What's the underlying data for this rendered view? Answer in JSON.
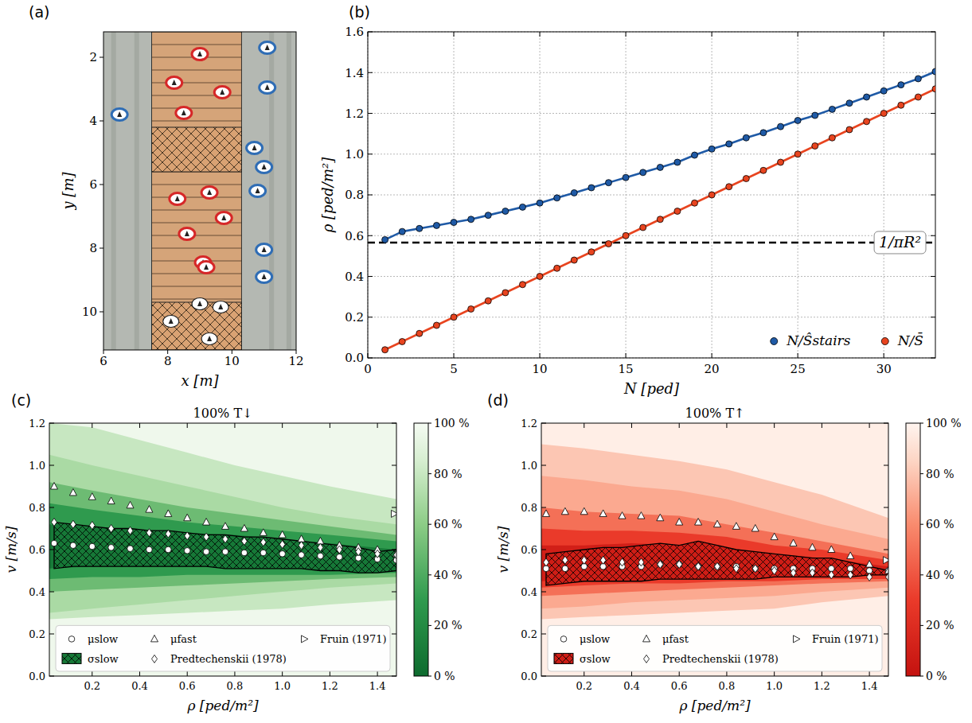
{
  "chart_data": [
    {
      "type": "scatter",
      "panel_label": "(a)",
      "x_label": "x [m]",
      "y_label": "y [m]",
      "xlim": [
        6,
        12
      ],
      "ylim": [
        11.2,
        1.2
      ],
      "xticks": [
        6,
        8,
        10,
        12
      ],
      "yticks": [
        2,
        4,
        6,
        8,
        10
      ],
      "stairs": {
        "x": [
          7.5,
          10.3
        ],
        "y": [
          1.2,
          11.2
        ]
      },
      "hatched_y": [
        [
          4.2,
          5.6
        ],
        [
          9.7,
          11.2
        ]
      ],
      "marker": "ellipse",
      "series": [
        {
          "color": "#d62728",
          "x": [
            9.0,
            8.2,
            9.7,
            8.5,
            9.3,
            8.3,
            9.75,
            8.6,
            9.1,
            9.2
          ],
          "values": [
            1.9,
            2.8,
            3.1,
            3.75,
            6.25,
            6.45,
            7.05,
            7.55,
            8.45,
            8.6
          ]
        },
        {
          "color": "#2f6db5",
          "x": [
            11.1,
            11.1,
            6.5,
            10.7,
            11.0,
            10.8,
            11.0,
            11.0
          ],
          "values": [
            1.7,
            2.95,
            3.8,
            4.85,
            5.45,
            6.2,
            8.05,
            8.9
          ]
        },
        {
          "color": "#ffffff",
          "x": [
            9.0,
            9.65,
            8.1,
            9.3
          ],
          "values": [
            9.75,
            9.85,
            10.3,
            10.85
          ]
        }
      ]
    },
    {
      "type": "line",
      "panel_label": "(b)",
      "x_label": "N [ped]",
      "y_label": "ρ [ped/m²]",
      "xlim": [
        0,
        33
      ],
      "ylim": [
        0,
        1.6
      ],
      "xticks": [
        0,
        5,
        10,
        15,
        20,
        25,
        30
      ],
      "yticks": [
        {
          "value": 0,
          "label": "0.0"
        },
        0.2,
        0.4,
        0.6,
        0.8,
        {
          "value": 1,
          "label": "1.0"
        },
        1.2,
        1.4,
        1.6
      ],
      "grid": true,
      "legend": "lower right",
      "marker": "circle",
      "x": [
        1,
        2,
        3,
        4,
        5,
        6,
        7,
        8,
        9,
        10,
        11,
        12,
        13,
        14,
        15,
        16,
        17,
        18,
        19,
        20,
        21,
        22,
        23,
        24,
        25,
        26,
        27,
        28,
        29,
        30,
        31,
        32,
        33
      ],
      "series": [
        {
          "name": "N/Ŝstairs",
          "color": "#1f5aa6",
          "values": [
            0.58,
            0.62,
            0.635,
            0.65,
            0.665,
            0.68,
            0.7,
            0.72,
            0.74,
            0.76,
            0.785,
            0.81,
            0.835,
            0.86,
            0.885,
            0.91,
            0.935,
            0.96,
            0.995,
            1.025,
            1.05,
            1.08,
            1.105,
            1.135,
            1.165,
            1.19,
            1.22,
            1.25,
            1.28,
            1.31,
            1.34,
            1.37,
            1.405
          ]
        },
        {
          "name": "N/S̄",
          "color": "#e8441f",
          "values": [
            0.04,
            0.08,
            0.12,
            0.16,
            0.2,
            0.24,
            0.28,
            0.32,
            0.36,
            0.4,
            0.44,
            0.48,
            0.52,
            0.56,
            0.6,
            0.64,
            0.68,
            0.72,
            0.76,
            0.8,
            0.84,
            0.88,
            0.92,
            0.96,
            1.0,
            1.04,
            1.08,
            1.12,
            1.16,
            1.2,
            1.24,
            1.28,
            1.32
          ]
        }
      ],
      "reference_line": {
        "value": 0.566,
        "label": "1/πR²",
        "line_style": "dashed"
      }
    },
    {
      "type": "contour",
      "panel_label": "(c)",
      "title": "100% T↓",
      "x_label": "ρ [ped/m²]",
      "y_label": "v [m/s]",
      "xlim": [
        0.02,
        1.48
      ],
      "ylim": [
        0,
        1.2
      ],
      "xticks": [
        0.2,
        0.4,
        0.6,
        0.8,
        {
          "value": 1,
          "label": "1.0"
        },
        1.2,
        1.4
      ],
      "yticks": [
        {
          "value": 0,
          "label": "0.0"
        },
        0.2,
        0.4,
        0.6,
        0.8,
        {
          "value": 1,
          "label": "1.0"
        },
        1.2
      ],
      "color": "green",
      "legend": "lower center",
      "contour_x": [
        0.02,
        0.2,
        0.4,
        0.6,
        0.8,
        1.0,
        1.2,
        1.48
      ],
      "contours": [
        {
          "level": 90,
          "lower": [
            0.27,
            0.28,
            0.29,
            0.3,
            0.31,
            0.32,
            0.34,
            0.36
          ],
          "upper": [
            1.2,
            1.18,
            1.12,
            1.06,
            1.0,
            0.95,
            0.9,
            0.84
          ]
        },
        {
          "level": 80,
          "lower": [
            0.3,
            0.32,
            0.34,
            0.36,
            0.38,
            0.4,
            0.42,
            0.44
          ],
          "upper": [
            1.05,
            1.0,
            0.95,
            0.9,
            0.85,
            0.8,
            0.76,
            0.72
          ]
        },
        {
          "level": 60,
          "lower": [
            0.4,
            0.41,
            0.42,
            0.43,
            0.44,
            0.45,
            0.46,
            0.47
          ],
          "upper": [
            0.92,
            0.88,
            0.84,
            0.8,
            0.77,
            0.74,
            0.71,
            0.67
          ]
        },
        {
          "level": 40,
          "lower": [
            0.46,
            0.47,
            0.47,
            0.48,
            0.48,
            0.48,
            0.48,
            0.49
          ],
          "upper": [
            0.82,
            0.79,
            0.76,
            0.73,
            0.71,
            0.69,
            0.67,
            0.64
          ]
        },
        {
          "level": 20,
          "lower": [
            0.51,
            0.52,
            0.52,
            0.52,
            0.52,
            0.51,
            0.51,
            0.5
          ],
          "upper": [
            0.72,
            0.7,
            0.69,
            0.68,
            0.67,
            0.65,
            0.63,
            0.6
          ]
        }
      ],
      "colorbar": {
        "range": [
          0,
          100
        ],
        "ticks": [
          {
            "value": 0,
            "label": "0 %"
          },
          {
            "value": 20,
            "label": "20 %"
          },
          {
            "value": 40,
            "label": "40 %"
          },
          {
            "value": 60,
            "label": "60 %"
          },
          {
            "value": 80,
            "label": "80 %"
          },
          {
            "value": 100,
            "label": "100 %"
          }
        ]
      },
      "x": [
        0.04,
        0.12,
        0.2,
        0.28,
        0.36,
        0.44,
        0.52,
        0.6,
        0.68,
        0.76,
        0.84,
        0.92,
        1.0,
        1.08,
        1.16,
        1.24,
        1.32,
        1.4,
        1.48
      ],
      "series": [
        {
          "name": "μslow",
          "marker": "circle",
          "values": [
            0.63,
            0.62,
            0.615,
            0.61,
            0.605,
            0.6,
            0.6,
            0.595,
            0.59,
            0.59,
            0.585,
            0.585,
            0.58,
            0.575,
            0.57,
            0.565,
            0.56,
            0.555,
            0.55
          ]
        },
        {
          "name": "μfast",
          "marker": "triangle",
          "values": [
            0.9,
            0.87,
            0.85,
            0.83,
            0.81,
            0.79,
            0.77,
            0.75,
            0.73,
            0.71,
            0.7,
            0.68,
            0.67,
            0.65,
            0.64,
            0.62,
            0.61,
            0.6,
            0.58
          ]
        },
        {
          "name": "Fruin (1971)",
          "marker": "triangle-right",
          "x": [
            1.47
          ],
          "values": [
            0.77
          ]
        },
        {
          "name": "σslow",
          "type": "band",
          "upper": [
            0.73,
            0.72,
            0.71,
            0.7,
            0.7,
            0.69,
            0.69,
            0.68,
            0.67,
            0.67,
            0.66,
            0.66,
            0.65,
            0.64,
            0.63,
            0.62,
            0.61,
            0.59,
            0.6
          ],
          "lower": [
            0.51,
            0.52,
            0.52,
            0.52,
            0.52,
            0.52,
            0.52,
            0.52,
            0.52,
            0.51,
            0.51,
            0.51,
            0.51,
            0.51,
            0.5,
            0.5,
            0.49,
            0.49,
            0.5
          ]
        },
        {
          "name": "Predtechenskii (1978)",
          "marker": "diamond",
          "values": [
            0.73,
            0.72,
            0.715,
            0.7,
            0.69,
            0.68,
            0.675,
            0.665,
            0.66,
            0.65,
            0.64,
            0.635,
            0.625,
            0.62,
            0.61,
            0.6,
            0.59,
            0.58,
            0.575
          ]
        }
      ]
    },
    {
      "type": "contour",
      "panel_label": "(d)",
      "title": "100% T↑",
      "x_label": "ρ [ped/m²]",
      "y_label": "v [m/s]",
      "xlim": [
        0.02,
        1.48
      ],
      "ylim": [
        0,
        1.2
      ],
      "xticks": [
        0.2,
        0.4,
        0.6,
        0.8,
        {
          "value": 1,
          "label": "1.0"
        },
        1.2,
        1.4
      ],
      "yticks": [
        {
          "value": 0,
          "label": "0.0"
        },
        0.2,
        0.4,
        0.6,
        0.8,
        {
          "value": 1,
          "label": "1.0"
        },
        1.2
      ],
      "color": "red",
      "legend": "lower center",
      "contour_x": [
        0.02,
        0.2,
        0.4,
        0.6,
        0.8,
        1.0,
        1.2,
        1.48
      ],
      "contours": [
        {
          "level": 90,
          "lower": [
            0.27,
            0.28,
            0.29,
            0.3,
            0.31,
            0.32,
            0.35,
            0.38
          ],
          "upper": [
            1.1,
            1.08,
            1.05,
            1.02,
            0.98,
            0.92,
            0.86,
            0.75
          ]
        },
        {
          "level": 80,
          "lower": [
            0.32,
            0.33,
            0.35,
            0.36,
            0.37,
            0.38,
            0.4,
            0.42
          ],
          "upper": [
            0.95,
            0.93,
            0.9,
            0.88,
            0.84,
            0.78,
            0.72,
            0.65
          ]
        },
        {
          "level": 60,
          "lower": [
            0.38,
            0.39,
            0.4,
            0.41,
            0.42,
            0.43,
            0.44,
            0.45
          ],
          "upper": [
            0.8,
            0.78,
            0.77,
            0.76,
            0.72,
            0.68,
            0.64,
            0.58
          ]
        },
        {
          "level": 40,
          "lower": [
            0.42,
            0.43,
            0.44,
            0.44,
            0.45,
            0.45,
            0.46,
            0.46
          ],
          "upper": [
            0.7,
            0.69,
            0.69,
            0.68,
            0.66,
            0.62,
            0.6,
            0.55
          ]
        },
        {
          "level": 20,
          "lower": [
            0.45,
            0.46,
            0.46,
            0.47,
            0.47,
            0.47,
            0.47,
            0.48
          ],
          "upper": [
            0.62,
            0.62,
            0.63,
            0.62,
            0.6,
            0.58,
            0.56,
            0.52
          ]
        }
      ],
      "colorbar": {
        "range": [
          0,
          100
        ],
        "ticks": [
          {
            "value": 0,
            "label": "0 %"
          },
          {
            "value": 20,
            "label": "20 %"
          },
          {
            "value": 40,
            "label": "40 %"
          },
          {
            "value": 60,
            "label": "60 %"
          },
          {
            "value": 80,
            "label": "80 %"
          },
          {
            "value": 100,
            "label": "100 %"
          }
        ]
      },
      "x": [
        0.04,
        0.12,
        0.2,
        0.28,
        0.36,
        0.44,
        0.52,
        0.6,
        0.68,
        0.76,
        0.84,
        0.92,
        1.0,
        1.08,
        1.16,
        1.24,
        1.32,
        1.4,
        1.48
      ],
      "series": [
        {
          "name": "μslow",
          "marker": "circle",
          "values": [
            0.51,
            0.51,
            0.52,
            0.52,
            0.52,
            0.52,
            0.53,
            0.53,
            0.52,
            0.52,
            0.52,
            0.51,
            0.51,
            0.51,
            0.51,
            0.51,
            0.51,
            0.5,
            0.5
          ]
        },
        {
          "name": "μfast",
          "marker": "triangle",
          "values": [
            0.77,
            0.78,
            0.78,
            0.77,
            0.76,
            0.76,
            0.75,
            0.73,
            0.73,
            0.72,
            0.71,
            0.7,
            0.66,
            0.63,
            0.61,
            0.6,
            0.57,
            0.53,
            0.5
          ]
        },
        {
          "name": "Fruin (1971)",
          "marker": "triangle-right",
          "x": [
            1.47
          ],
          "values": [
            0.55
          ]
        },
        {
          "name": "σslow",
          "type": "band",
          "upper": [
            0.58,
            0.59,
            0.6,
            0.61,
            0.61,
            0.62,
            0.63,
            0.62,
            0.64,
            0.62,
            0.6,
            0.59,
            0.58,
            0.57,
            0.56,
            0.56,
            0.54,
            0.52,
            0.5
          ],
          "lower": [
            0.43,
            0.44,
            0.45,
            0.45,
            0.45,
            0.45,
            0.46,
            0.46,
            0.46,
            0.46,
            0.46,
            0.46,
            0.47,
            0.47,
            0.47,
            0.47,
            0.47,
            0.48,
            0.48
          ]
        },
        {
          "name": "Predtechenskii (1978)",
          "marker": "diamond",
          "values": [
            0.54,
            0.55,
            0.55,
            0.55,
            0.54,
            0.54,
            0.53,
            0.53,
            0.52,
            0.52,
            0.51,
            0.51,
            0.5,
            0.49,
            0.49,
            0.48,
            0.48,
            0.47,
            0.47
          ]
        }
      ]
    }
  ]
}
